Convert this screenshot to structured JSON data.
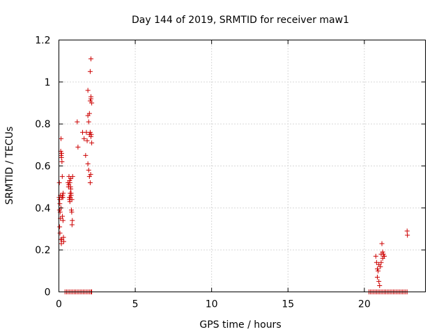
{
  "chart_data": {
    "type": "scatter",
    "title": "Day 144 of 2019, SRMTID for receiver maw1",
    "xlabel": "GPS time / hours",
    "ylabel": "SRMTID / TECUs",
    "xlim": [
      0,
      24
    ],
    "ylim": [
      0,
      1.2
    ],
    "xticks": [
      0,
      5,
      10,
      15,
      20
    ],
    "yticks": [
      0,
      0.2,
      0.4,
      0.6,
      0.8,
      1,
      1.2
    ],
    "xtick_labels": [
      "0",
      "5",
      "10",
      "15",
      "20"
    ],
    "ytick_labels": [
      "0",
      "0.2",
      "0.4",
      "0.6",
      "0.8",
      "1",
      "1.2"
    ],
    "grid": true,
    "legend": "none",
    "marker": "plus",
    "color": "#cc0000",
    "series": [
      {
        "x": [
          0.02,
          0.03,
          0.05,
          0.06,
          0.08,
          0.1,
          0.12,
          0.14,
          0.15,
          0.17,
          0.18,
          0.2,
          0.22,
          0.24,
          0.26,
          0.28,
          0.3,
          0.32,
          0.05,
          0.07,
          0.12,
          0.16,
          0.19,
          0.23,
          0.27,
          0.04,
          0.1,
          0.14,
          0.2,
          0.6,
          0.63,
          0.66,
          0.68,
          0.7,
          0.72,
          0.74,
          0.76,
          0.78,
          0.8,
          0.82,
          0.84,
          0.86,
          0.88,
          0.9,
          0.65,
          0.7,
          0.75,
          0.8,
          0.85,
          0.72,
          0.78,
          1.2,
          1.25,
          1.55,
          1.65,
          1.75,
          1.8,
          1.85,
          1.9,
          1.95,
          2.0,
          2.05,
          2.08,
          2.1,
          2.12,
          2.15,
          1.95,
          2.0,
          2.05,
          2.1,
          1.9,
          2.05,
          2.1,
          2.0,
          2.05,
          2.1,
          2.15,
          1.9,
          20.75,
          20.8,
          20.85,
          20.9,
          20.95,
          21.0,
          21.05,
          21.1,
          21.15,
          21.2,
          21.25,
          21.3,
          20.85,
          20.95,
          21.1,
          21.2,
          21.3,
          22.8,
          22.82
        ],
        "y": [
          0.45,
          0.52,
          0.44,
          0.42,
          0.38,
          0.35,
          0.67,
          0.73,
          0.65,
          0.64,
          0.66,
          0.62,
          0.55,
          0.46,
          0.45,
          0.47,
          0.26,
          0.24,
          0.31,
          0.28,
          0.25,
          0.23,
          0.25,
          0.36,
          0.34,
          0.39,
          0.46,
          0.4,
          0.45,
          0.52,
          0.5,
          0.55,
          0.45,
          0.44,
          0.43,
          0.47,
          0.5,
          0.54,
          0.46,
          0.39,
          0.38,
          0.32,
          0.34,
          0.55,
          0.51,
          0.53,
          0.45,
          0.47,
          0.44,
          0.52,
          0.49,
          0.81,
          0.69,
          0.76,
          0.73,
          0.65,
          0.76,
          0.72,
          0.61,
          0.58,
          0.55,
          0.52,
          0.56,
          0.74,
          0.75,
          0.71,
          0.81,
          0.85,
          0.91,
          0.93,
          0.96,
          1.05,
          1.11,
          0.75,
          0.76,
          0.92,
          0.9,
          0.84,
          0.17,
          0.14,
          0.11,
          0.1,
          0.05,
          0.03,
          0.12,
          0.14,
          0.23,
          0.19,
          0.18,
          0.17,
          0.07,
          0.13,
          0.18,
          0.16,
          0.17,
          0.29,
          0.27
        ]
      },
      {
        "x": [
          0.4,
          0.5,
          0.6,
          0.7,
          0.8,
          0.9,
          1.0,
          1.1,
          1.2,
          1.3,
          1.4,
          1.5,
          1.6,
          1.7,
          1.8,
          1.9,
          2.0,
          2.1,
          2.15,
          20.3,
          20.4,
          20.5,
          20.6,
          20.7,
          20.8,
          20.9,
          21.0,
          21.1,
          21.2,
          21.3,
          21.4,
          21.5,
          21.6,
          21.7,
          21.8,
          21.9,
          22.0,
          22.1,
          22.2,
          22.3,
          22.4,
          22.5,
          22.6,
          22.7,
          22.8
        ],
        "y": [
          0,
          0,
          0,
          0,
          0,
          0,
          0,
          0,
          0,
          0,
          0,
          0,
          0,
          0,
          0,
          0,
          0,
          0,
          0,
          0,
          0,
          0,
          0,
          0,
          0,
          0,
          0,
          0,
          0,
          0,
          0,
          0,
          0,
          0,
          0,
          0,
          0,
          0,
          0,
          0,
          0,
          0,
          0,
          0,
          0
        ]
      }
    ]
  }
}
